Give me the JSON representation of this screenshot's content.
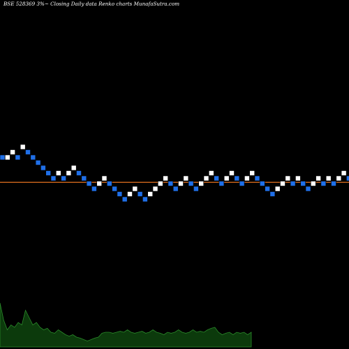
{
  "header": {
    "title": "BSE 528369 3%~  Closing Daily data  Renko  charts MunafaSutra.com"
  },
  "colors": {
    "background": "#000000",
    "up_brick": "#ffffff",
    "down_brick": "#1f6fe8",
    "brick_border": "#000000",
    "reference_line": "#c0601a",
    "volume_area": "#0c3a0c",
    "volume_edge": "#2a8a2a",
    "label_text": "#ffffff"
  },
  "chart_data": {
    "type": "renko",
    "title": "BSE 528369 3%~  Closing Daily data  Renko  charts MunafaSutra.com",
    "brick_size_percent": 3,
    "y_axis_shown": false,
    "x_axis_shown": false,
    "grid": false,
    "reference_lines": [
      {
        "level": 6,
        "color": "#c0601a"
      },
      {
        "level": 7,
        "color": "#c0601a"
      }
    ],
    "bricks": [
      {
        "level": 2,
        "dir": "down"
      },
      {
        "level": 2,
        "dir": "up"
      },
      {
        "level": 1,
        "dir": "up"
      },
      {
        "level": 2,
        "dir": "down"
      },
      {
        "level": 0,
        "dir": "up"
      },
      {
        "level": 1,
        "dir": "down"
      },
      {
        "level": 2,
        "dir": "down"
      },
      {
        "level": 3,
        "dir": "down"
      },
      {
        "level": 4,
        "dir": "down"
      },
      {
        "level": 5,
        "dir": "down"
      },
      {
        "level": 6,
        "dir": "down"
      },
      {
        "level": 5,
        "dir": "up"
      },
      {
        "level": 6,
        "dir": "down"
      },
      {
        "level": 5,
        "dir": "up"
      },
      {
        "level": 4,
        "dir": "up"
      },
      {
        "level": 5,
        "dir": "down"
      },
      {
        "level": 6,
        "dir": "down"
      },
      {
        "level": 7,
        "dir": "down"
      },
      {
        "level": 8,
        "dir": "down"
      },
      {
        "level": 7,
        "dir": "up"
      },
      {
        "level": 6,
        "dir": "up"
      },
      {
        "level": 7,
        "dir": "down"
      },
      {
        "level": 8,
        "dir": "down"
      },
      {
        "level": 9,
        "dir": "down"
      },
      {
        "level": 10,
        "dir": "down"
      },
      {
        "level": 9,
        "dir": "up"
      },
      {
        "level": 8,
        "dir": "up"
      },
      {
        "level": 9,
        "dir": "down"
      },
      {
        "level": 10,
        "dir": "down"
      },
      {
        "level": 9,
        "dir": "up"
      },
      {
        "level": 8,
        "dir": "up"
      },
      {
        "level": 7,
        "dir": "up"
      },
      {
        "level": 6,
        "dir": "up"
      },
      {
        "level": 7,
        "dir": "down"
      },
      {
        "level": 8,
        "dir": "down"
      },
      {
        "level": 7,
        "dir": "up"
      },
      {
        "level": 6,
        "dir": "up"
      },
      {
        "level": 7,
        "dir": "down"
      },
      {
        "level": 8,
        "dir": "down"
      },
      {
        "level": 7,
        "dir": "up"
      },
      {
        "level": 6,
        "dir": "up"
      },
      {
        "level": 5,
        "dir": "up"
      },
      {
        "level": 6,
        "dir": "down"
      },
      {
        "level": 7,
        "dir": "down"
      },
      {
        "level": 6,
        "dir": "up"
      },
      {
        "level": 5,
        "dir": "up"
      },
      {
        "level": 6,
        "dir": "down"
      },
      {
        "level": 7,
        "dir": "down"
      },
      {
        "level": 6,
        "dir": "up"
      },
      {
        "level": 5,
        "dir": "up"
      },
      {
        "level": 6,
        "dir": "down"
      },
      {
        "level": 7,
        "dir": "down"
      },
      {
        "level": 8,
        "dir": "down"
      },
      {
        "level": 9,
        "dir": "down"
      },
      {
        "level": 8,
        "dir": "up"
      },
      {
        "level": 7,
        "dir": "up"
      },
      {
        "level": 6,
        "dir": "up"
      },
      {
        "level": 7,
        "dir": "down"
      },
      {
        "level": 6,
        "dir": "up"
      },
      {
        "level": 7,
        "dir": "down"
      },
      {
        "level": 8,
        "dir": "down"
      },
      {
        "level": 7,
        "dir": "up"
      },
      {
        "level": 6,
        "dir": "up"
      },
      {
        "level": 7,
        "dir": "down"
      },
      {
        "level": 6,
        "dir": "up"
      },
      {
        "level": 7,
        "dir": "down"
      },
      {
        "level": 6,
        "dir": "up"
      },
      {
        "level": 5,
        "dir": "up"
      },
      {
        "level": 6,
        "dir": "down"
      }
    ],
    "volume_profile": [
      0.9,
      0.55,
      0.35,
      0.45,
      0.4,
      0.5,
      0.45,
      0.75,
      0.6,
      0.45,
      0.5,
      0.4,
      0.35,
      0.38,
      0.3,
      0.28,
      0.35,
      0.3,
      0.25,
      0.22,
      0.25,
      0.2,
      0.18,
      0.15,
      0.12,
      0.15,
      0.18,
      0.2,
      0.28,
      0.3,
      0.3,
      0.28,
      0.3,
      0.32,
      0.3,
      0.35,
      0.3,
      0.28,
      0.3,
      0.32,
      0.28,
      0.3,
      0.35,
      0.3,
      0.28,
      0.25,
      0.3,
      0.28,
      0.3,
      0.35,
      0.3,
      0.28,
      0.3,
      0.35,
      0.3,
      0.32,
      0.3,
      0.35,
      0.38,
      0.4,
      0.3,
      0.25,
      0.28,
      0.3,
      0.25,
      0.3,
      0.28,
      0.3,
      0.25,
      0.3
    ]
  }
}
